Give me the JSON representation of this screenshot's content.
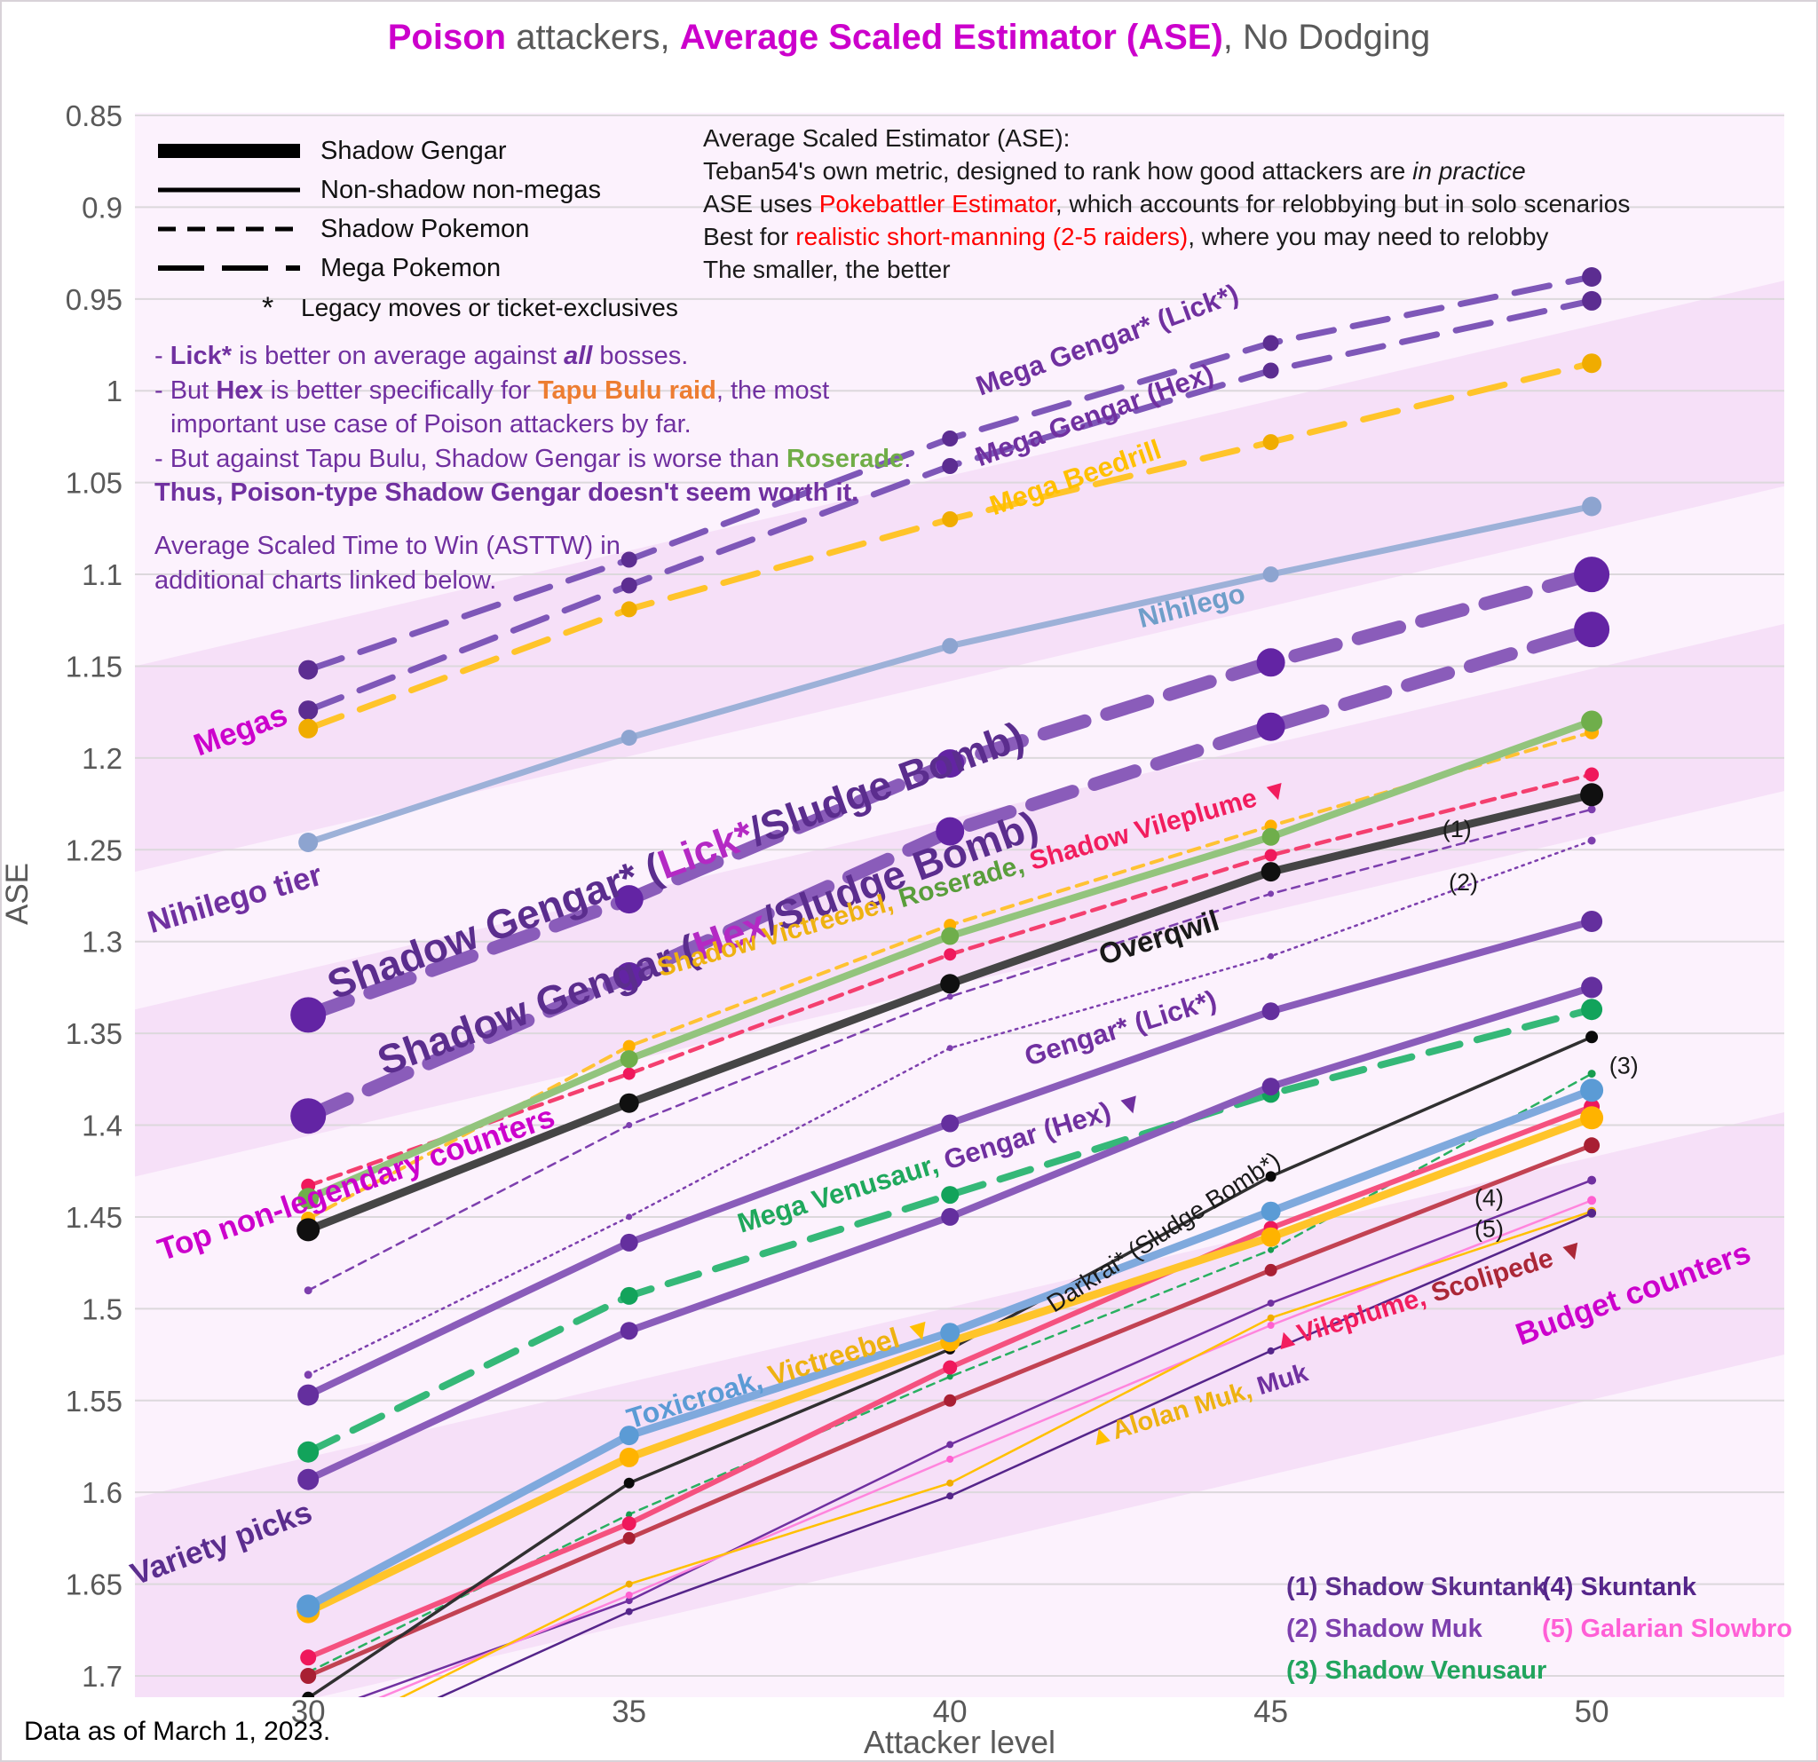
{
  "title": {
    "segments": [
      {
        "t": "Poison",
        "c": "#cc00cc",
        "b": true
      },
      {
        "t": " attackers, ",
        "c": "#595959"
      },
      {
        "t": "Average Scaled Estimator (ASE)",
        "c": "#cc00cc",
        "b": true
      },
      {
        "t": ", No Dodging",
        "c": "#595959"
      }
    ]
  },
  "legend": {
    "rows": [
      {
        "sample": "thick-solid-line",
        "label": "Shadow Gengar"
      },
      {
        "sample": "solid-line",
        "label": "Non-shadow non-megas"
      },
      {
        "sample": "dashed-line",
        "label": "Shadow Pokemon"
      },
      {
        "sample": "long-dash-line",
        "label": "Mega Pokemon"
      }
    ],
    "star_symbol": "*",
    "star_label": "Legacy moves or ticket-exclusives"
  },
  "info_box": {
    "lines": [
      [
        {
          "t": "Average Scaled Estimator (ASE):"
        }
      ],
      [
        {
          "t": "Teban54's own metric, designed to rank how good attackers are "
        },
        {
          "t": "in practice",
          "i": true
        }
      ],
      [
        {
          "t": "ASE uses "
        },
        {
          "t": "Pokebattler Estimator",
          "c": "#ff0000"
        },
        {
          "t": ", which accounts for relobbying but in solo scenarios"
        }
      ],
      [
        {
          "t": "Best for "
        },
        {
          "t": "realistic short-manning (2-5 raiders)",
          "c": "#ff0000"
        },
        {
          "t": ", where you may need to relobby"
        }
      ],
      [
        {
          "t": "The smaller, the better"
        }
      ]
    ]
  },
  "notes": {
    "lines": [
      [
        {
          "t": "- "
        },
        {
          "t": "Lick*",
          "b": true
        },
        {
          "t": " is better on average against "
        },
        {
          "t": "all",
          "b": true,
          "i": true
        },
        {
          "t": " bosses."
        }
      ],
      [
        {
          "t": "- But "
        },
        {
          "t": "Hex",
          "b": true
        },
        {
          "t": " is better specifically for "
        },
        {
          "t": "Tapu Bulu raid",
          "c": "#ed7d31",
          "b": true
        },
        {
          "t": ", the most"
        }
      ],
      [
        {
          "t": "important use case of Poison attackers by far.",
          "indent": true
        }
      ],
      [
        {
          "t": "- But against Tapu Bulu, Shadow Gengar is worse than "
        },
        {
          "t": "Roserade",
          "c": "#70ad47",
          "b": true
        },
        {
          "t": "."
        }
      ],
      [
        {
          "t": "Thus, Poison-type Shadow Gengar doesn't seem worth it.",
          "b": true
        }
      ]
    ],
    "asttw": [
      [
        {
          "t": "Average Scaled Time to Win (ASTTW) in"
        }
      ],
      [
        {
          "t": "additional charts linked below."
        }
      ]
    ]
  },
  "numbered_key": {
    "col1": [
      {
        "t": "(1) Shadow Skuntank",
        "c": "#5b2d8e"
      },
      {
        "t": "(2) Shadow Muk",
        "c": "#7d3fae"
      },
      {
        "t": "(3) Shadow Venusaur",
        "c": "#21a45d"
      }
    ],
    "col2": [
      {
        "t": "(4) Skuntank",
        "c": "#55258a"
      },
      {
        "t": "(5) Galarian Slowbro",
        "c": "#ff5fd6"
      }
    ]
  },
  "footer": "Data as of March 1, 2023.",
  "x_axis_title": "Attacker level",
  "y_axis_title": "ASE",
  "chart_data": {
    "type": "line",
    "x": [
      30,
      35,
      40,
      45,
      50
    ],
    "x_tick_labels": [
      "30",
      "35",
      "40",
      "45",
      "50"
    ],
    "y_ticks": [
      "0.85",
      "0.9",
      "0.95",
      "1",
      "1.05",
      "1.1",
      "1.15",
      "1.2",
      "1.25",
      "1.3",
      "1.35",
      "1.4",
      "1.45",
      "1.5",
      "1.55",
      "1.6",
      "1.65",
      "1.7"
    ],
    "ylim": [
      0.85,
      1.7
    ],
    "y_inverted_note": "smaller ASE is better; axis increases downward",
    "grid": true,
    "series": [
      {
        "name": "Mega Gengar* (Lick*)",
        "style": "mega",
        "color": "#7e57b8",
        "dot": "#5c2d91",
        "values": [
          1.152,
          1.092,
          1.026,
          0.974,
          0.938
        ]
      },
      {
        "name": "Mega Gengar (Hex)",
        "style": "mega",
        "color": "#7e57b8",
        "dot": "#5c2d91",
        "values": [
          1.174,
          1.106,
          1.041,
          0.989,
          0.951
        ]
      },
      {
        "name": "Mega Beedrill",
        "style": "mega",
        "color": "#ffc42a",
        "dot": "#f0ac00",
        "values": [
          1.184,
          1.119,
          1.07,
          1.028,
          0.985
        ]
      },
      {
        "name": "Nihilego",
        "style": "solid-7",
        "color": "#9db1d8",
        "dot": "#8da4d0",
        "values": [
          1.246,
          1.189,
          1.139,
          1.1,
          1.063
        ]
      },
      {
        "name": "Shadow Gengar* (Lick*/Sludge Bomb)",
        "style": "shadow-thick",
        "color": "#8a5cba",
        "dot": "#6324a4",
        "values": [
          1.34,
          1.277,
          1.203,
          1.148,
          1.1
        ]
      },
      {
        "name": "Shadow Gengar (Hex/Sludge Bomb)",
        "style": "shadow-thick",
        "color": "#8a5cba",
        "dot": "#6324a4",
        "values": [
          1.395,
          1.319,
          1.24,
          1.183,
          1.13
        ]
      },
      {
        "name": "Shadow Victreebel",
        "style": "dash-4",
        "color": "#ffc233",
        "dot": "#ffaf00",
        "values": [
          1.451,
          1.357,
          1.291,
          1.237,
          1.186
        ]
      },
      {
        "name": "Shadow Vileplume",
        "style": "dash-5",
        "color": "#f43f6f",
        "dot": "#ef185c",
        "values": [
          1.433,
          1.372,
          1.307,
          1.253,
          1.209
        ]
      },
      {
        "name": "(1) Shadow Skuntank",
        "style": "dash-thin",
        "color": "#7d3fae",
        "dot": "#7d3fae",
        "values": [
          1.49,
          1.4,
          1.33,
          1.274,
          1.228
        ]
      },
      {
        "name": "(2) Shadow Muk",
        "style": "dot-thin",
        "color": "#7d3fae",
        "dot": "#7d3fae",
        "values": [
          1.536,
          1.45,
          1.358,
          1.308,
          1.245
        ]
      },
      {
        "name": "(3) Shadow Venusaur",
        "style": "dash-thin",
        "color": "#29b061",
        "dot": "#179c4e",
        "values": [
          1.698,
          1.612,
          1.537,
          1.468,
          1.372
        ]
      },
      {
        "name": "Roserade",
        "style": "solid-8",
        "color": "#93c47d",
        "dot": "#6fae4b",
        "values": [
          1.44,
          1.364,
          1.297,
          1.243,
          1.18
        ]
      },
      {
        "name": "Overqwil",
        "style": "solid-9",
        "color": "#454545",
        "dot": "#101010",
        "values": [
          1.457,
          1.388,
          1.323,
          1.262,
          1.22
        ]
      },
      {
        "name": "Gengar* (Lick*)",
        "style": "solid-8",
        "color": "#8a5cba",
        "dot": "#642f9e",
        "values": [
          1.547,
          1.464,
          1.399,
          1.338,
          1.289
        ]
      },
      {
        "name": "Mega Venusaur",
        "style": "mega-8",
        "color": "#35b878",
        "dot": "#12a35b",
        "values": [
          1.578,
          1.493,
          1.438,
          1.383,
          1.337
        ]
      },
      {
        "name": "Gengar (Hex)",
        "style": "solid-8",
        "color": "#8a5cba",
        "dot": "#642f9e",
        "values": [
          1.593,
          1.512,
          1.45,
          1.379,
          1.325
        ]
      },
      {
        "name": "Muk",
        "style": "solid-thin",
        "color": "#7030a0",
        "dot": "#7030a0",
        "values": [
          1.722,
          1.659,
          1.574,
          1.497,
          1.43
        ]
      },
      {
        "name": "(5) Galarian Slowbro",
        "style": "solid-thin",
        "color": "#ff85dd",
        "dot": "#ff5fd0",
        "values": [
          1.728,
          1.656,
          1.582,
          1.509,
          1.441
        ]
      },
      {
        "name": "Alolan Muk",
        "style": "solid-thin",
        "color": "#ffc000",
        "dot": "#f0ac00",
        "values": [
          1.737,
          1.65,
          1.595,
          1.505,
          1.447
        ]
      },
      {
        "name": "(4) Skuntank",
        "style": "solid-thin",
        "color": "#55258a",
        "dot": "#55258a",
        "values": [
          1.744,
          1.665,
          1.602,
          1.523,
          1.448
        ]
      },
      {
        "name": "Scolipede",
        "style": "solid-5",
        "color": "#c24252",
        "dot": "#a81f33",
        "values": [
          1.7,
          1.625,
          1.55,
          1.479,
          1.411
        ]
      },
      {
        "name": "Vileplume",
        "style": "solid-6",
        "color": "#f5517f",
        "dot": "#ef185c",
        "values": [
          1.69,
          1.617,
          1.532,
          1.456,
          1.39
        ]
      },
      {
        "name": "Darkrai* (Sludge Bomb*)",
        "style": "solid-4",
        "color": "#303030",
        "dot": "#0a0a0a",
        "values": [
          1.712,
          1.595,
          1.522,
          1.428,
          1.352
        ]
      },
      {
        "name": "Victreebel",
        "style": "solid-9",
        "color": "#ffc42a",
        "dot": "#ffb300",
        "values": [
          1.665,
          1.581,
          1.518,
          1.461,
          1.396
        ]
      },
      {
        "name": "Toxicroak",
        "style": "solid-9",
        "color": "#7fa9dd",
        "dot": "#5b9bd5",
        "values": [
          1.662,
          1.569,
          1.513,
          1.447,
          1.381
        ]
      }
    ],
    "bands": [
      {
        "name": "megas-band",
        "top": [
          1.15,
          0.94
        ],
        "bottom": [
          1.262,
          1.052
        ]
      },
      {
        "name": "shadow-gengar-band",
        "top": [
          1.337,
          1.127
        ],
        "bottom": [
          1.428,
          1.218
        ]
      },
      {
        "name": "variety-band",
        "top": [
          1.603,
          1.393
        ],
        "bottom": [
          1.735,
          1.525
        ]
      }
    ],
    "labels": [
      {
        "x": 29.0,
        "y": 1.19,
        "rot": -20,
        "size": 35,
        "segments": [
          {
            "t": "Megas",
            "c": "#cc00cc",
            "b": true
          }
        ]
      },
      {
        "x": 28.9,
        "y": 1.282,
        "rot": -16,
        "size": 35,
        "segments": [
          {
            "t": "Nihilego tier",
            "c": "#7030a0",
            "b": true
          }
        ]
      },
      {
        "x": 30.8,
        "y": 1.437,
        "rot": -19,
        "size": 35,
        "segments": [
          {
            "t": "Top non-legendary counters",
            "c": "#cc00cc",
            "b": true
          }
        ]
      },
      {
        "x": 28.7,
        "y": 1.633,
        "rot": -20,
        "size": 35,
        "segments": [
          {
            "t": "Variety picks",
            "c": "#5b2d8e",
            "b": true
          }
        ]
      },
      {
        "x": 50.7,
        "y": 1.497,
        "rot": -20,
        "size": 35,
        "segments": [
          {
            "t": "Budget counters",
            "c": "#cc00cc",
            "b": true
          }
        ]
      },
      {
        "x": 42.5,
        "y": 0.977,
        "rot": -20,
        "size": 31,
        "segments": [
          {
            "t": "Mega Gengar* (Lick*)",
            "c": "#7030a0",
            "b": true
          }
        ]
      },
      {
        "x": 42.3,
        "y": 1.018,
        "rot": -20,
        "size": 31,
        "segments": [
          {
            "t": "Mega Gengar (Hex)",
            "c": "#7030a0",
            "b": true
          }
        ]
      },
      {
        "x": 42.0,
        "y": 1.052,
        "rot": -19,
        "size": 31,
        "segments": [
          {
            "t": "Mega Beedrill",
            "c": "#ffc000",
            "b": true
          }
        ]
      },
      {
        "x": 43.8,
        "y": 1.122,
        "rot": -14,
        "size": 31,
        "segments": [
          {
            "t": "Nihilego",
            "c": "#6f9ec9",
            "b": true
          }
        ]
      },
      {
        "x": 35.8,
        "y": 1.263,
        "rot": -20,
        "size": 46,
        "segments": [
          {
            "t": "Shadow Gengar*  (",
            "c": "#5b2d8e",
            "b": true
          },
          {
            "t": "Lick*",
            "c": "#b429c4",
            "b": true
          },
          {
            "t": "/Sludge Bomb)",
            "c": "#5b2d8e",
            "b": true
          }
        ]
      },
      {
        "x": 36.3,
        "y": 1.308,
        "rot": -20,
        "size": 46,
        "segments": [
          {
            "t": "Shadow Gengar (",
            "c": "#5b2d8e",
            "b": true
          },
          {
            "t": "Hex",
            "c": "#b429c4",
            "b": true
          },
          {
            "t": "/Sludge Bomb)",
            "c": "#5b2d8e",
            "b": true
          }
        ]
      },
      {
        "x": 40.4,
        "y": 1.27,
        "rot": -16,
        "size": 30,
        "segments": [
          {
            "t": "Shadow Victreebel, ",
            "c": "#eeb211",
            "b": true
          },
          {
            "t": "Roserade, ",
            "c": "#5a9e3c",
            "b": true
          },
          {
            "t": "Shadow Vileplume ",
            "c": "#f21d5e",
            "b": true
          },
          {
            "t": "▼",
            "c": "#f21d5e"
          }
        ]
      },
      {
        "x": 43.3,
        "y": 1.303,
        "rot": -17,
        "size": 33,
        "segments": [
          {
            "t": "Overqwil",
            "c": "#1a1a1a",
            "b": true
          }
        ]
      },
      {
        "x": 47.9,
        "y": 1.243,
        "rot": 0,
        "size": 27,
        "segments": [
          {
            "t": "(1)",
            "c": "#1a1a1a"
          }
        ]
      },
      {
        "x": 48.0,
        "y": 1.272,
        "rot": 0,
        "size": 27,
        "segments": [
          {
            "t": "(2)",
            "c": "#1a1a1a"
          }
        ]
      },
      {
        "x": 42.7,
        "y": 1.352,
        "rot": -17,
        "size": 31,
        "segments": [
          {
            "t": "Gengar* (Lick*)",
            "c": "#7030a0",
            "b": true
          }
        ]
      },
      {
        "x": 39.9,
        "y": 1.425,
        "rot": -17,
        "size": 31,
        "segments": [
          {
            "t": "Mega Venusaur, ",
            "c": "#1fa85c",
            "b": true
          },
          {
            "t": "Gengar (Hex) ",
            "c": "#7030a0",
            "b": true
          },
          {
            "t": "▼",
            "c": "#7030a0"
          }
        ]
      },
      {
        "x": 43.4,
        "y": 1.462,
        "rot": -33,
        "size": 28,
        "segments": [
          {
            "t": "Darkrai* (Sludge Bomb*)",
            "c": "#1a1a1a"
          }
        ]
      },
      {
        "x": 47.5,
        "y": 1.497,
        "rot": -17,
        "size": 30,
        "segments": [
          {
            "t": "▲",
            "c": "#f21d5e"
          },
          {
            "t": "Vileplume, ",
            "c": "#f21d5e",
            "b": true
          },
          {
            "t": "Scolipede ",
            "c": "#ab2737",
            "b": true
          },
          {
            "t": "▼",
            "c": "#ab2737"
          }
        ]
      },
      {
        "x": 37.4,
        "y": 1.54,
        "rot": -17,
        "size": 32,
        "segments": [
          {
            "t": "Toxicroak, ",
            "c": "#5b9bd5",
            "b": true
          },
          {
            "t": "Victreebel ",
            "c": "#eeb211",
            "b": true
          },
          {
            "t": "▼",
            "c": "#ffc000"
          }
        ]
      },
      {
        "x": 43.9,
        "y": 1.557,
        "rot": -17,
        "size": 29,
        "segments": [
          {
            "t": "▲",
            "c": "#ffc000"
          },
          {
            "t": "Alolan Muk, ",
            "c": "#eeb211",
            "b": true
          },
          {
            "t": "Muk",
            "c": "#7030a0",
            "b": true
          }
        ]
      },
      {
        "x": 50.5,
        "y": 1.372,
        "rot": 0,
        "size": 27,
        "segments": [
          {
            "t": "(3)",
            "c": "#1a1a1a"
          }
        ]
      },
      {
        "x": 48.4,
        "y": 1.444,
        "rot": 0,
        "size": 27,
        "segments": [
          {
            "t": "(4)",
            "c": "#1a1a1a"
          }
        ]
      },
      {
        "x": 48.4,
        "y": 1.461,
        "rot": 0,
        "size": 27,
        "segments": [
          {
            "t": "(5)",
            "c": "#1a1a1a"
          }
        ]
      }
    ],
    "colors": {
      "plot_bg": "#fcf2fd",
      "band": "#f6e0f8",
      "grid": "#dcd8dc",
      "tick": "#595959"
    }
  }
}
